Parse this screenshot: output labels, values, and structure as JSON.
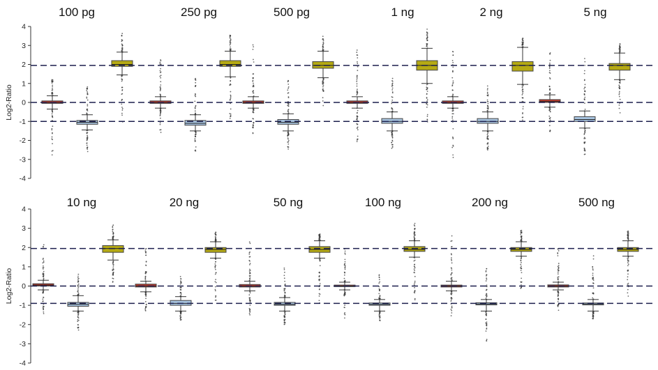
{
  "chart_data": [
    {
      "type": "box",
      "ylabel": "Log2-Ratio",
      "ylim": [
        -4,
        4
      ],
      "yticks": [
        "4",
        "3",
        "2",
        "1",
        "0",
        "-1",
        "-2",
        "-3",
        "-4"
      ],
      "reference_lines": [
        1.95,
        0,
        -1
      ],
      "groups": [
        {
          "title": "100 pg",
          "boxes": [
            {
              "color": "#c0392b",
              "q1": -0.05,
              "median": 0.0,
              "q3": 0.08,
              "lo": -0.35,
              "hi": 0.35,
              "outlier_min": -3.0,
              "outlier_max": 1.2
            },
            {
              "color": "#a8c4e0",
              "q1": -1.15,
              "median": -1.05,
              "q3": -0.95,
              "lo": -1.45,
              "hi": -0.65,
              "outlier_min": -2.6,
              "outlier_max": 1.0
            },
            {
              "color": "#b5aa14",
              "q1": 1.9,
              "median": 2.0,
              "q3": 2.2,
              "lo": 1.45,
              "hi": 2.65,
              "outlier_min": -1.3,
              "outlier_max": 3.7
            }
          ]
        },
        {
          "title": "250 pg",
          "boxes": [
            {
              "color": "#c0392b",
              "q1": -0.05,
              "median": 0.0,
              "q3": 0.08,
              "lo": -0.3,
              "hi": 0.3,
              "outlier_min": -1.6,
              "outlier_max": 2.4
            },
            {
              "color": "#a8c4e0",
              "q1": -1.2,
              "median": -1.1,
              "q3": -0.95,
              "lo": -1.5,
              "hi": -0.65,
              "outlier_min": -2.6,
              "outlier_max": 1.3
            },
            {
              "color": "#b5aa14",
              "q1": 1.9,
              "median": 2.0,
              "q3": 2.2,
              "lo": 1.35,
              "hi": 2.7,
              "outlier_min": -0.9,
              "outlier_max": 3.6
            }
          ]
        },
        {
          "title": "500 pg",
          "boxes": [
            {
              "color": "#c0392b",
              "q1": -0.05,
              "median": 0.0,
              "q3": 0.08,
              "lo": -0.3,
              "hi": 0.3,
              "outlier_min": -1.7,
              "outlier_max": 3.1
            },
            {
              "color": "#a8c4e0",
              "q1": -1.15,
              "median": -1.05,
              "q3": -0.9,
              "lo": -1.5,
              "hi": -0.6,
              "outlier_min": -2.5,
              "outlier_max": 1.4
            },
            {
              "color": "#b5aa14",
              "q1": 1.8,
              "median": 1.95,
              "q3": 2.15,
              "lo": 1.3,
              "hi": 2.7,
              "outlier_min": -0.2,
              "outlier_max": 3.5
            }
          ]
        },
        {
          "title": "1 ng",
          "boxes": [
            {
              "color": "#c0392b",
              "q1": -0.05,
              "median": 0.0,
              "q3": 0.08,
              "lo": -0.3,
              "hi": 0.3,
              "outlier_min": -2.1,
              "outlier_max": 2.9
            },
            {
              "color": "#a8c4e0",
              "q1": -1.1,
              "median": -1.0,
              "q3": -0.85,
              "lo": -1.5,
              "hi": -0.5,
              "outlier_min": -2.5,
              "outlier_max": 1.3
            },
            {
              "color": "#b5aa14",
              "q1": 1.7,
              "median": 1.95,
              "q3": 2.2,
              "lo": 1.0,
              "hi": 2.85,
              "outlier_min": -1.2,
              "outlier_max": 3.9
            }
          ]
        },
        {
          "title": "2 ng",
          "boxes": [
            {
              "color": "#c0392b",
              "q1": -0.05,
              "median": 0.0,
              "q3": 0.08,
              "lo": -0.3,
              "hi": 0.3,
              "outlier_min": -2.9,
              "outlier_max": 2.9
            },
            {
              "color": "#a8c4e0",
              "q1": -1.1,
              "median": -1.0,
              "q3": -0.85,
              "lo": -1.5,
              "hi": -0.5,
              "outlier_min": -2.5,
              "outlier_max": 1.1
            },
            {
              "color": "#b5aa14",
              "q1": 1.65,
              "median": 1.95,
              "q3": 2.15,
              "lo": 0.95,
              "hi": 2.9,
              "outlier_min": -1.0,
              "outlier_max": 3.4
            }
          ]
        },
        {
          "title": "5 ng",
          "boxes": [
            {
              "color": "#c0392b",
              "q1": 0.0,
              "median": 0.05,
              "q3": 0.15,
              "lo": -0.25,
              "hi": 0.4,
              "outlier_min": -1.6,
              "outlier_max": 2.8
            },
            {
              "color": "#a8c4e0",
              "q1": -1.0,
              "median": -0.9,
              "q3": -0.75,
              "lo": -1.35,
              "hi": -0.45,
              "outlier_min": -2.8,
              "outlier_max": 2.4
            },
            {
              "color": "#b5aa14",
              "q1": 1.7,
              "median": 1.95,
              "q3": 2.05,
              "lo": 1.2,
              "hi": 2.6,
              "outlier_min": -0.6,
              "outlier_max": 3.1
            }
          ]
        }
      ]
    },
    {
      "type": "box",
      "ylabel": "Log2-Ratio",
      "ylim": [
        -4,
        4
      ],
      "yticks": [
        "4",
        "3",
        "2",
        "1",
        "0",
        "-1",
        "-2",
        "-3",
        "-4"
      ],
      "reference_lines": [
        1.95,
        0,
        -0.9
      ],
      "groups": [
        {
          "title": "10 ng",
          "boxes": [
            {
              "color": "#c0392b",
              "q1": 0.0,
              "median": 0.05,
              "q3": 0.12,
              "lo": -0.2,
              "hi": 0.3,
              "outlier_min": -1.5,
              "outlier_max": 2.2
            },
            {
              "color": "#a8c4e0",
              "q1": -1.05,
              "median": -0.95,
              "q3": -0.85,
              "lo": -1.3,
              "hi": -0.5,
              "outlier_min": -2.4,
              "outlier_max": 0.9
            },
            {
              "color": "#b5aa14",
              "q1": 1.75,
              "median": 1.95,
              "q3": 2.1,
              "lo": 1.35,
              "hi": 2.4,
              "outlier_min": 0.1,
              "outlier_max": 3.2
            }
          ]
        },
        {
          "title": "20 ng",
          "boxes": [
            {
              "color": "#c0392b",
              "q1": -0.05,
              "median": 0.0,
              "q3": 0.1,
              "lo": -0.3,
              "hi": 0.25,
              "outlier_min": -1.3,
              "outlier_max": 2.1
            },
            {
              "color": "#a8c4e0",
              "q1": -1.0,
              "median": -0.9,
              "q3": -0.75,
              "lo": -1.3,
              "hi": -0.55,
              "outlier_min": -1.8,
              "outlier_max": 0.5
            },
            {
              "color": "#b5aa14",
              "q1": 1.75,
              "median": 1.9,
              "q3": 2.0,
              "lo": 1.45,
              "hi": 2.3,
              "outlier_min": -0.9,
              "outlier_max": 2.8
            }
          ]
        },
        {
          "title": "50 ng",
          "boxes": [
            {
              "color": "#c0392b",
              "q1": -0.05,
              "median": 0.0,
              "q3": 0.08,
              "lo": -0.25,
              "hi": 0.25,
              "outlier_min": -1.5,
              "outlier_max": 2.5
            },
            {
              "color": "#a8c4e0",
              "q1": -1.0,
              "median": -0.95,
              "q3": -0.85,
              "lo": -1.3,
              "hi": -0.6,
              "outlier_min": -2.1,
              "outlier_max": 1.2
            },
            {
              "color": "#b5aa14",
              "q1": 1.75,
              "median": 1.9,
              "q3": 2.05,
              "lo": 1.45,
              "hi": 2.35,
              "outlier_min": -0.9,
              "outlier_max": 2.7
            }
          ]
        },
        {
          "title": "100 ng",
          "boxes": [
            {
              "color": "#c0392b",
              "q1": -0.03,
              "median": 0.0,
              "q3": 0.05,
              "lo": -0.2,
              "hi": 0.2,
              "outlier_min": -1.8,
              "outlier_max": 2.0
            },
            {
              "color": "#a8c4e0",
              "q1": -1.0,
              "median": -0.95,
              "q3": -0.88,
              "lo": -1.3,
              "hi": -0.7,
              "outlier_min": -1.8,
              "outlier_max": 0.6
            },
            {
              "color": "#b5aa14",
              "q1": 1.8,
              "median": 1.9,
              "q3": 2.05,
              "lo": 1.5,
              "hi": 2.35,
              "outlier_min": -0.8,
              "outlier_max": 3.3
            }
          ]
        },
        {
          "title": "200 ng",
          "boxes": [
            {
              "color": "#c0392b",
              "q1": -0.05,
              "median": 0.0,
              "q3": 0.05,
              "lo": -0.25,
              "hi": 0.25,
              "outlier_min": -1.6,
              "outlier_max": 2.7
            },
            {
              "color": "#a8c4e0",
              "q1": -0.98,
              "median": -0.93,
              "q3": -0.87,
              "lo": -1.3,
              "hi": -0.7,
              "outlier_min": -3.1,
              "outlier_max": 0.9
            },
            {
              "color": "#b5aa14",
              "q1": 1.8,
              "median": 1.9,
              "q3": 2.0,
              "lo": 1.55,
              "hi": 2.3,
              "outlier_min": -0.3,
              "outlier_max": 2.9
            }
          ]
        },
        {
          "title": "500 ng",
          "boxes": [
            {
              "color": "#c0392b",
              "q1": -0.05,
              "median": 0.0,
              "q3": 0.06,
              "lo": -0.2,
              "hi": 0.2,
              "outlier_min": -1.3,
              "outlier_max": 2.1
            },
            {
              "color": "#a8c4e0",
              "q1": -0.98,
              "median": -0.93,
              "q3": -0.88,
              "lo": -1.3,
              "hi": -0.7,
              "outlier_min": -1.7,
              "outlier_max": 1.6
            },
            {
              "color": "#b5aa14",
              "q1": 1.8,
              "median": 1.9,
              "q3": 2.0,
              "lo": 1.55,
              "hi": 2.35,
              "outlier_min": -0.6,
              "outlier_max": 2.9
            }
          ]
        }
      ]
    }
  ]
}
